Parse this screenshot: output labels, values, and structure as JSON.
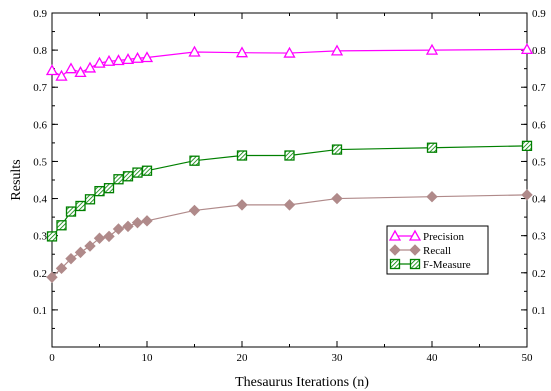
{
  "chart_data": {
    "type": "line",
    "title": "",
    "xlabel": "Thesaurus Iterations (n)",
    "ylabel": "Results",
    "xlim": [
      0,
      50
    ],
    "ylim": [
      0,
      0.9
    ],
    "x_ticks": [
      0,
      10,
      20,
      30,
      40,
      50
    ],
    "y_ticks": [
      0.1,
      0.2,
      0.3,
      0.4,
      0.5,
      0.6,
      0.7,
      0.8,
      0.9
    ],
    "grid": false,
    "legend_position": "lower-right",
    "series": [
      {
        "name": "Precision",
        "color": "#ff00ff",
        "marker": "triangle",
        "x": [
          0,
          1,
          2,
          3,
          4,
          5,
          6,
          7,
          8,
          9,
          10,
          15,
          20,
          25,
          30,
          40,
          50
        ],
        "y": [
          0.745,
          0.73,
          0.75,
          0.74,
          0.752,
          0.765,
          0.77,
          0.772,
          0.775,
          0.778,
          0.78,
          0.795,
          0.793,
          0.792,
          0.798,
          0.8,
          0.802
        ]
      },
      {
        "name": "Recall",
        "color": "#b08a8a",
        "marker": "diamond",
        "x": [
          0,
          1,
          2,
          3,
          4,
          5,
          6,
          7,
          8,
          9,
          10,
          15,
          20,
          25,
          30,
          40,
          50
        ],
        "y": [
          0.188,
          0.212,
          0.238,
          0.255,
          0.272,
          0.293,
          0.298,
          0.318,
          0.325,
          0.335,
          0.34,
          0.368,
          0.383,
          0.383,
          0.4,
          0.405,
          0.41
        ]
      },
      {
        "name": "F-Measure",
        "color": "#008000",
        "marker": "square-hatched",
        "x": [
          0,
          1,
          2,
          3,
          4,
          5,
          6,
          7,
          8,
          9,
          10,
          15,
          20,
          25,
          30,
          40,
          50
        ],
        "y": [
          0.298,
          0.328,
          0.365,
          0.38,
          0.398,
          0.42,
          0.428,
          0.452,
          0.46,
          0.47,
          0.475,
          0.502,
          0.516,
          0.516,
          0.532,
          0.537,
          0.542
        ]
      }
    ]
  }
}
